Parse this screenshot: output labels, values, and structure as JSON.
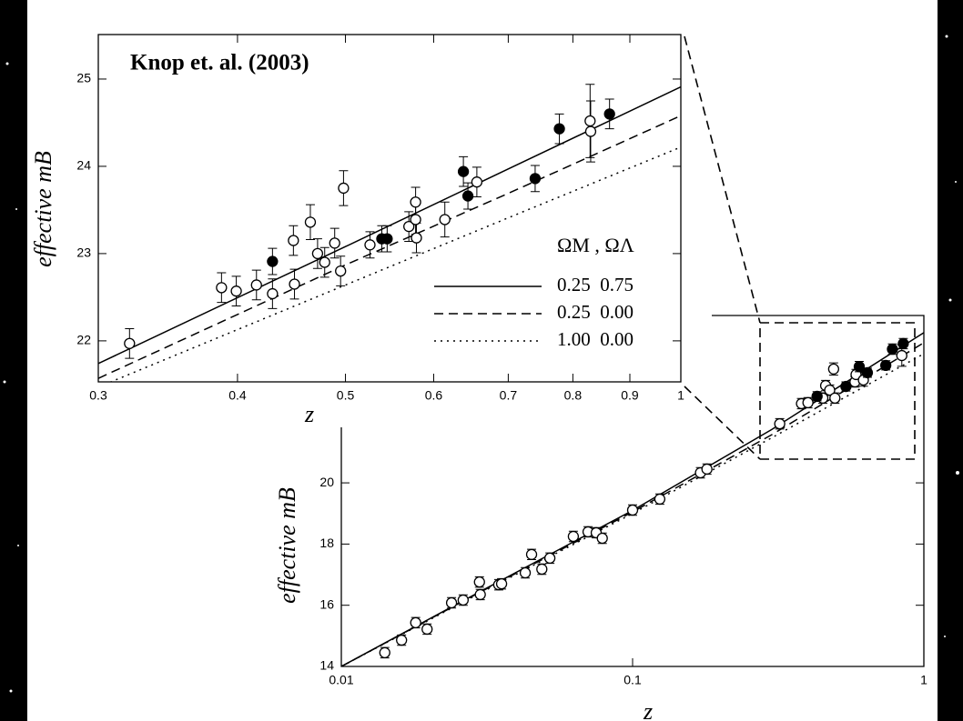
{
  "chart_data": [
    {
      "type": "scatter",
      "annotation": "Knop et. al. (2003)",
      "x_label": "z",
      "y_label": "effective mB",
      "xlog": true,
      "xlim": [
        0.3,
        1
      ],
      "xticks": [
        0.3,
        0.4,
        0.5,
        0.6,
        0.7,
        0.8,
        0.9,
        1
      ],
      "ylim": [
        21.53,
        25.51
      ],
      "yticks": [
        22,
        23,
        24,
        25
      ],
      "legend_title": "ΩM , ΩΛ",
      "legend": "right",
      "series": [
        {
          "kind": "points",
          "marker": "open",
          "color": "#ffffff",
          "x": [
            0.32,
            0.387,
            0.399,
            0.416,
            0.43,
            0.449,
            0.45,
            0.465,
            0.472,
            0.479,
            0.489,
            0.495,
            0.498,
            0.526,
            0.57,
            0.578,
            0.578,
            0.579,
            0.614,
            0.656,
            0.829,
            0.83
          ],
          "values": [
            21.97,
            22.61,
            22.57,
            22.64,
            22.54,
            23.15,
            22.65,
            23.36,
            23.0,
            22.9,
            23.12,
            22.8,
            23.75,
            23.1,
            23.31,
            23.59,
            23.39,
            23.18,
            23.39,
            23.82,
            24.52,
            24.4
          ],
          "errors": [
            0.17,
            0.17,
            0.17,
            0.17,
            0.17,
            0.17,
            0.17,
            0.2,
            0.17,
            0.17,
            0.17,
            0.17,
            0.2,
            0.15,
            0.17,
            0.17,
            0.17,
            0.17,
            0.2,
            0.17,
            0.42,
            0.35
          ]
        },
        {
          "kind": "points",
          "marker": "filled",
          "color": "#000000",
          "x": [
            0.43,
            0.539,
            0.545,
            0.638,
            0.644,
            0.74,
            0.778,
            0.863
          ],
          "values": [
            22.91,
            23.17,
            23.17,
            23.94,
            23.66,
            23.86,
            24.43,
            24.6
          ],
          "errors": [
            0.15,
            0.15,
            0.15,
            0.17,
            0.15,
            0.15,
            0.17,
            0.17
          ]
        },
        {
          "kind": "line",
          "name": "0.25  0.75",
          "dash": "solid",
          "color": "#000000",
          "x": [
            0.3,
            0.5,
            0.7,
            1
          ],
          "values": [
            21.74,
            23.08,
            23.97,
            24.91
          ]
        },
        {
          "kind": "line",
          "name": "0.25  0.00",
          "dash": "dashed",
          "color": "#000000",
          "x": [
            0.3,
            0.5,
            0.7,
            1
          ],
          "values": [
            21.57,
            22.87,
            23.69,
            24.58
          ]
        },
        {
          "kind": "line",
          "name": "1.00  0.00",
          "dash": "dotted",
          "color": "#000000",
          "x": [
            0.3,
            0.5,
            0.7,
            1
          ],
          "values": [
            21.47,
            22.64,
            23.41,
            24.22
          ]
        }
      ]
    },
    {
      "type": "scatter",
      "x_label": "z",
      "y_label": "effective mB",
      "xlog": true,
      "xlim": [
        0.01,
        1
      ],
      "xticks": [
        0.01,
        0.1,
        1
      ],
      "ylim": [
        14,
        25.47
      ],
      "yticks": [
        14,
        16,
        18,
        20
      ],
      "series": [
        {
          "kind": "points",
          "marker": "open",
          "color": "#ffffff",
          "x": [
            0.0141,
            0.0161,
            0.018,
            0.0197,
            0.0239,
            0.0262,
            0.0298,
            0.03,
            0.0347,
            0.0355,
            0.0428,
            0.045,
            0.0488,
            0.052,
            0.0626,
            0.0703,
            0.075,
            0.0787,
            0.1,
            0.124,
            0.171,
            0.18,
            0.32,
            0.38,
            0.4,
            0.45,
            0.46,
            0.475,
            0.49,
            0.495,
            0.58,
            0.585,
            0.62,
            0.84
          ],
          "values": [
            14.45,
            14.86,
            15.43,
            15.22,
            16.08,
            16.17,
            16.76,
            16.35,
            16.67,
            16.7,
            17.06,
            17.66,
            17.18,
            17.54,
            18.25,
            18.4,
            18.37,
            18.19,
            19.11,
            19.47,
            20.33,
            20.45,
            21.93,
            22.59,
            22.62,
            22.77,
            23.18,
            23.03,
            23.72,
            22.77,
            23.3,
            23.54,
            23.36,
            24.16
          ],
          "errors": [
            0.17,
            0.17,
            0.17,
            0.17,
            0.17,
            0.17,
            0.17,
            0.17,
            0.17,
            0.17,
            0.17,
            0.17,
            0.17,
            0.17,
            0.17,
            0.17,
            0.17,
            0.17,
            0.17,
            0.17,
            0.17,
            0.17,
            0.17,
            0.17,
            0.17,
            0.17,
            0.17,
            0.17,
            0.2,
            0.17,
            0.17,
            0.17,
            0.2,
            0.35
          ]
        },
        {
          "kind": "points",
          "marker": "filled",
          "color": "#000000",
          "x": [
            0.43,
            0.54,
            0.6,
            0.64,
            0.74,
            0.78,
            0.85
          ],
          "values": [
            22.83,
            23.15,
            23.8,
            23.6,
            23.84,
            24.37,
            24.55
          ],
          "errors": [
            0.15,
            0.15,
            0.17,
            0.15,
            0.15,
            0.17,
            0.17
          ]
        },
        {
          "kind": "line",
          "dash": "solid",
          "color": "#000000",
          "x": [
            0.01,
            0.03,
            0.1,
            0.3,
            1
          ],
          "values": [
            14.0,
            16.45,
            19.1,
            21.74,
            24.91
          ]
        },
        {
          "kind": "line",
          "dash": "dashed",
          "color": "#000000",
          "x": [
            0.01,
            0.03,
            0.1,
            0.3,
            1
          ],
          "values": [
            14.0,
            16.43,
            19.05,
            21.57,
            24.58
          ]
        },
        {
          "kind": "line",
          "dash": "dotted",
          "color": "#000000",
          "x": [
            0.01,
            0.03,
            0.1,
            0.3,
            1
          ],
          "values": [
            14.0,
            16.4,
            19.0,
            21.47,
            24.22
          ]
        }
      ]
    }
  ]
}
